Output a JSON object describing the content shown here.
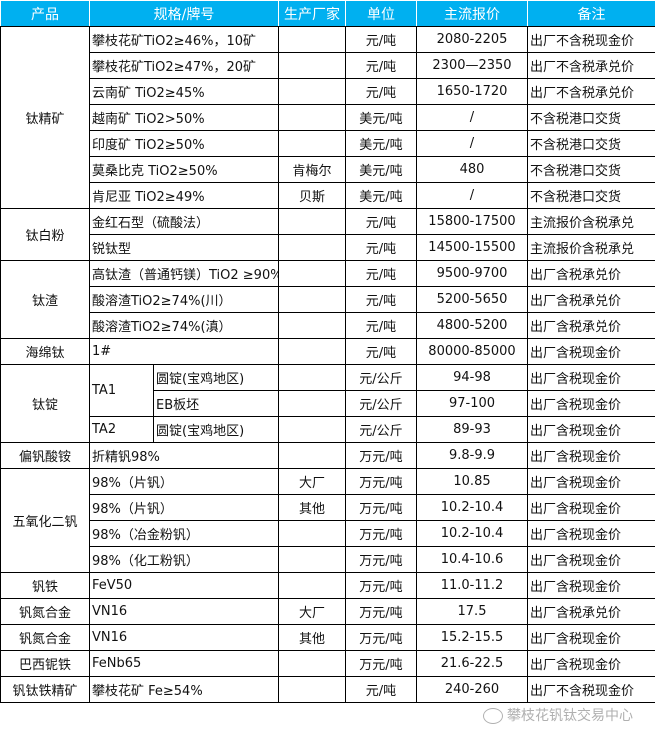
{
  "header": {
    "product": "产品",
    "spec": "规格/牌号",
    "maker": "生产厂家",
    "unit": "单位",
    "price": "主流报价",
    "note": "备注"
  },
  "accent_color": "#00b0f0",
  "groups": [
    {
      "product": "钛精矿",
      "rows": [
        {
          "spec": "攀枝花矿TiO2≥46%，10矿",
          "maker": "",
          "unit": "元/吨",
          "price": "2080-2205",
          "note": "出厂不含税现金价"
        },
        {
          "spec": "攀枝花矿TiO2≥47%，20矿",
          "maker": "",
          "unit": "元/吨",
          "price": "2300—2350",
          "note": "出厂不含税承兑价"
        },
        {
          "spec": "云南矿 TiO2≥45%",
          "maker": "",
          "unit": "元/吨",
          "price": "1650-1720",
          "note": "出厂不含税承兑价"
        },
        {
          "spec": "越南矿 TiO2>50%",
          "maker": "",
          "unit": "美元/吨",
          "price": "/",
          "note": "不含税港口交货"
        },
        {
          "spec": "印度矿 TiO2≥50%",
          "maker": "",
          "unit": "美元/吨",
          "price": "/",
          "note": "不含税港口交货"
        },
        {
          "spec": "莫桑比克 TiO2≥50%",
          "maker": "肯梅尔",
          "unit": "美元/吨",
          "price": "480",
          "note": "不含税港口交货"
        },
        {
          "spec": "肯尼亚 TiO2≥49%",
          "maker": "贝斯",
          "unit": "美元/吨",
          "price": "/",
          "note": "不含税港口交货"
        }
      ]
    },
    {
      "product": "钛白粉",
      "rows": [
        {
          "spec": "金红石型（硫酸法）",
          "maker": "",
          "unit": "元/吨",
          "price": "15800-17500",
          "note": "主流报价含税承兑"
        },
        {
          "spec": "锐钛型",
          "maker": "",
          "unit": "元/吨",
          "price": "14500-15500",
          "note": "主流报价含税承兑"
        }
      ]
    },
    {
      "product": "钛渣",
      "rows": [
        {
          "spec": "高钛渣（普通钙镁）TiO2 ≥90%",
          "maker": "",
          "unit": "元/吨",
          "price": "9500-9700",
          "note": "出厂含税承兑价"
        },
        {
          "spec": "酸溶渣TiO2≥74%(川）",
          "maker": "",
          "unit": "元/吨",
          "price": "5200-5650",
          "note": "出厂含税承兑价"
        },
        {
          "spec": "酸溶渣TiO2≥74%(滇）",
          "maker": "",
          "unit": "元/吨",
          "price": "4800-5200",
          "note": "出厂含税承兑价"
        }
      ]
    },
    {
      "product": "海绵钛",
      "rows": [
        {
          "spec": "1#",
          "maker": "",
          "unit": "元/吨",
          "price": "80000-85000",
          "note": "出厂含税现金价"
        }
      ]
    },
    {
      "product": "钛锭",
      "rows": [
        {
          "grade": "TA1",
          "grade_span": 2,
          "spec": "圆锭(宝鸡地区)",
          "maker": "",
          "unit": "元/公斤",
          "price": "94-98",
          "note": "出厂含税现金价"
        },
        {
          "spec": "EB板坯",
          "maker": "",
          "unit": "元/公斤",
          "price": "97-100",
          "note": "出厂含税现金价"
        },
        {
          "grade": "TA2",
          "grade_span": 1,
          "spec": "圆锭(宝鸡地区)",
          "maker": "",
          "unit": "元/公斤",
          "price": "89-93",
          "note": "出厂含税现金价"
        }
      ]
    },
    {
      "product": "偏钒酸铵",
      "rows": [
        {
          "spec": "折精钒98%",
          "maker": "",
          "unit": "万元/吨",
          "price": "9.8-9.9",
          "note": "出厂含税现金价"
        }
      ]
    },
    {
      "product": "五氧化二钒",
      "rows": [
        {
          "spec": "98%（片钒）",
          "maker": "大厂",
          "unit": "万元/吨",
          "price": "10.85",
          "note": "出厂含税现金价"
        },
        {
          "spec": "98%（片钒）",
          "maker": "其他",
          "unit": "万元/吨",
          "price": "10.2-10.4",
          "note": "出厂含税现金价"
        },
        {
          "spec": "98%（冶金粉钒）",
          "maker": "",
          "unit": "万元/吨",
          "price": "10.2-10.4",
          "note": "出厂含税现金价"
        },
        {
          "spec": "98%（化工粉钒）",
          "maker": "",
          "unit": "万元/吨",
          "price": "10.4-10.6",
          "note": "出厂含税现金价"
        }
      ]
    },
    {
      "product": "钒铁",
      "rows": [
        {
          "spec": "FeV50",
          "maker": "",
          "unit": "万元/吨",
          "price": "11.0-11.2",
          "note": "出厂含税现金价"
        }
      ]
    },
    {
      "product": "钒氮合金",
      "rows": [
        {
          "spec": "VN16",
          "maker": "大厂",
          "unit": "万元/吨",
          "price": "17.5",
          "note": "出厂含税承兑价"
        }
      ]
    },
    {
      "product": "钒氮合金",
      "rows": [
        {
          "spec": "VN16",
          "maker": "其他",
          "unit": "万元/吨",
          "price": "15.2-15.5",
          "note": "出厂含税现金价"
        }
      ]
    },
    {
      "product": "巴西铌铁",
      "rows": [
        {
          "spec": "FeNb65",
          "maker": "",
          "unit": "万元/吨",
          "price": "21.6-22.5",
          "note": "出厂含税现金价"
        }
      ]
    },
    {
      "product": "钒钛铁精矿",
      "rows": [
        {
          "spec": "攀枝花矿 Fe≥54%",
          "maker": "",
          "unit": "元/吨",
          "price": "240-260",
          "note": "出厂不含税现金价"
        }
      ]
    }
  ],
  "watermark": "攀枝花钒钛交易中心",
  "watermark_icon": "wechat-icon"
}
